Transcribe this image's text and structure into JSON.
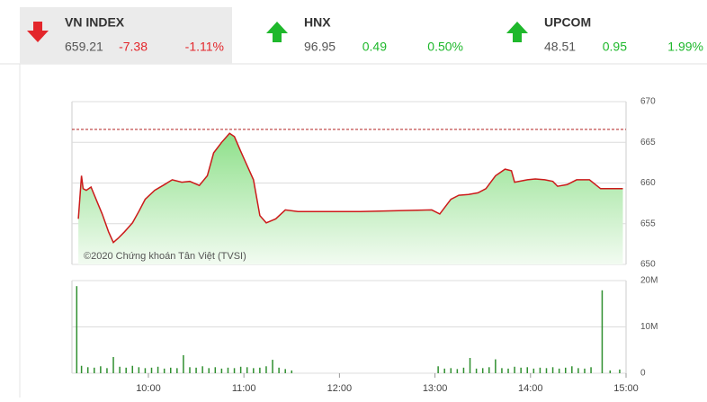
{
  "header": {
    "indices": [
      {
        "name": "VN INDEX",
        "value": "659.21",
        "change": "-7.38",
        "percent": "-1.11%",
        "direction": "down",
        "color": "#e3262b",
        "highlight": true
      },
      {
        "name": "HNX",
        "value": "96.95",
        "change": "0.49",
        "percent": "0.50%",
        "direction": "up",
        "color": "#1fb82c",
        "highlight": false
      },
      {
        "name": "UPCOM",
        "value": "48.51",
        "change": "0.95",
        "percent": "1.99%",
        "direction": "up",
        "color": "#1fb82c",
        "highlight": false
      }
    ]
  },
  "chart_data": [
    {
      "type": "line",
      "annotation": "©2020 Chứng khoán Tân Việt (TVSI)",
      "x": [
        "09:16",
        "09:18",
        "09:19",
        "09:21",
        "09:24",
        "09:28",
        "09:31",
        "09:35",
        "09:38",
        "09:41",
        "09:45",
        "09:50",
        "09:54",
        "09:58",
        "10:04",
        "10:10",
        "10:15",
        "10:21",
        "10:26",
        "10:32",
        "10:37",
        "10:41",
        "10:46",
        "10:51",
        "10:54",
        "10:58",
        "11:01",
        "11:06",
        "11:10",
        "11:14",
        "11:20",
        "11:26",
        "11:34",
        "12:13",
        "12:58",
        "13:03",
        "13:10",
        "13:15",
        "13:21",
        "13:27",
        "13:32",
        "13:38",
        "13:44",
        "13:48",
        "13:50",
        "13:58",
        "14:03",
        "14:09",
        "14:14",
        "14:17",
        "14:23",
        "14:29",
        "14:37",
        "14:44",
        "14:58"
      ],
      "values": [
        655.6,
        660.9,
        659.3,
        659.1,
        659.5,
        657.6,
        656.2,
        654.0,
        652.7,
        653.2,
        654.0,
        655.1,
        656.5,
        658.0,
        659.1,
        659.8,
        660.4,
        660.1,
        660.2,
        659.7,
        660.9,
        663.7,
        665.0,
        666.1,
        665.7,
        663.9,
        662.6,
        660.4,
        656.0,
        655.1,
        655.6,
        656.7,
        656.5,
        656.5,
        656.7,
        656.2,
        658.0,
        658.5,
        658.6,
        658.8,
        659.3,
        660.9,
        661.7,
        661.5,
        660.1,
        660.4,
        660.5,
        660.4,
        660.2,
        659.6,
        659.8,
        660.4,
        660.4,
        659.3,
        659.3
      ],
      "color": "#cc1a1a",
      "reference_line": 666.59,
      "reference_color": "#b22222",
      "xlim": [
        "09:12",
        "15:00"
      ],
      "ylim": [
        650,
        670
      ],
      "yticks": [
        650,
        655,
        660,
        665,
        670
      ],
      "grid": true
    },
    {
      "type": "bar",
      "color": "#2f8f2f",
      "x": [
        "09:15",
        "09:18",
        "09:22",
        "09:26",
        "09:30",
        "09:34",
        "09:38",
        "09:42",
        "09:46",
        "09:50",
        "09:54",
        "09:58",
        "10:02",
        "10:06",
        "10:10",
        "10:14",
        "10:18",
        "10:22",
        "10:26",
        "10:30",
        "10:34",
        "10:38",
        "10:42",
        "10:46",
        "10:50",
        "10:54",
        "10:58",
        "11:02",
        "11:06",
        "11:10",
        "11:14",
        "11:18",
        "11:22",
        "11:26",
        "11:30",
        "13:02",
        "13:06",
        "13:10",
        "13:14",
        "13:18",
        "13:22",
        "13:26",
        "13:30",
        "13:34",
        "13:38",
        "13:42",
        "13:46",
        "13:50",
        "13:54",
        "13:58",
        "14:02",
        "14:06",
        "14:10",
        "14:14",
        "14:18",
        "14:22",
        "14:26",
        "14:30",
        "14:34",
        "14:38",
        "14:45",
        "14:50",
        "14:56"
      ],
      "values": [
        18800000,
        1600000,
        1300000,
        1200000,
        1500000,
        1100000,
        3500000,
        1400000,
        1200000,
        1600000,
        1300000,
        1100000,
        1200000,
        1400000,
        1000000,
        1200000,
        1100000,
        3900000,
        1300000,
        1200000,
        1500000,
        1100000,
        1300000,
        1000000,
        1200000,
        1100000,
        1400000,
        1300000,
        1100000,
        1200000,
        1500000,
        2900000,
        1200000,
        900000,
        600000,
        1500000,
        1000000,
        1100000,
        900000,
        1200000,
        3300000,
        1000000,
        1100000,
        1300000,
        3000000,
        1100000,
        1000000,
        1400000,
        1200000,
        1300000,
        1000000,
        1200000,
        1100000,
        1300000,
        1000000,
        1200000,
        1500000,
        1100000,
        1000000,
        1300000,
        17900000,
        600000,
        800000
      ],
      "xlim": [
        "09:12",
        "15:00"
      ],
      "ylim": [
        0,
        20000000
      ],
      "yticks": [
        0,
        {
          "value": 10000000,
          "label": "10M"
        },
        {
          "value": 20000000,
          "label": "20M"
        }
      ],
      "xticks": [
        "10:00",
        "11:00",
        "12:00",
        "13:00",
        "14:00",
        "15:00"
      ],
      "grid": true
    }
  ]
}
